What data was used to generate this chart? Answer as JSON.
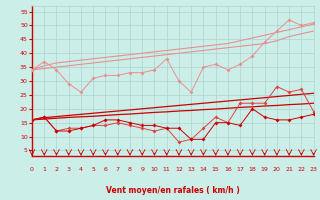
{
  "xlabel": "Vent moyen/en rafales ( km/h )",
  "background_color": "#cceee8",
  "grid_color": "#aad4ce",
  "x_ticks": [
    0,
    1,
    2,
    3,
    4,
    5,
    6,
    7,
    8,
    9,
    10,
    11,
    12,
    13,
    14,
    15,
    16,
    17,
    18,
    19,
    20,
    21,
    22,
    23
  ],
  "ylim": [
    3,
    57
  ],
  "xlim": [
    0,
    23
  ],
  "yticks": [
    5,
    10,
    15,
    20,
    25,
    30,
    35,
    40,
    45,
    50,
    55
  ],
  "line_upper_scatter": [
    34,
    37,
    34,
    29,
    26,
    31,
    32,
    32,
    33,
    33,
    34,
    38,
    30,
    26,
    35,
    36,
    34,
    36,
    39,
    44,
    48,
    52,
    50,
    51
  ],
  "line_upper_trend1": [
    34.0,
    35.5,
    36.5,
    37.0,
    37.5,
    38.0,
    38.5,
    39.0,
    39.5,
    40.0,
    40.5,
    41.0,
    41.5,
    42.0,
    42.5,
    43.0,
    43.5,
    44.5,
    45.5,
    46.5,
    47.5,
    48.5,
    49.5,
    50.5
  ],
  "line_upper_trend2": [
    34.0,
    34.5,
    35.0,
    35.5,
    36.0,
    36.5,
    37.0,
    37.5,
    38.0,
    38.5,
    39.0,
    39.5,
    40.0,
    40.5,
    41.0,
    41.5,
    42.0,
    42.5,
    43.0,
    43.5,
    44.5,
    46.0,
    47.0,
    48.0
  ],
  "line_mid_scatter": [
    16,
    17,
    12,
    13,
    13,
    14,
    14,
    15,
    14,
    13,
    12,
    13,
    8,
    9,
    13,
    17,
    15,
    22,
    22,
    22,
    28,
    26,
    27,
    19
  ],
  "line_mid_trend1": [
    16.0,
    16.8,
    17.2,
    17.6,
    18.0,
    18.4,
    18.8,
    19.2,
    19.6,
    20.0,
    20.4,
    20.8,
    21.2,
    21.6,
    22.0,
    22.4,
    22.8,
    23.2,
    23.6,
    24.0,
    24.4,
    24.8,
    25.2,
    25.6
  ],
  "line_mid_trend2": [
    16.0,
    16.3,
    16.6,
    16.9,
    17.1,
    17.3,
    17.6,
    17.9,
    18.1,
    18.4,
    18.7,
    18.9,
    19.2,
    19.4,
    19.7,
    19.9,
    20.2,
    20.5,
    20.7,
    21.0,
    21.2,
    21.5,
    21.7,
    22.0
  ],
  "line_low_scatter": [
    16,
    17,
    12,
    12,
    13,
    14,
    16,
    16,
    15,
    14,
    14,
    13,
    13,
    9,
    9,
    15,
    15,
    14,
    20,
    17,
    16,
    16,
    17,
    18
  ],
  "color_light": "#e89090",
  "color_medium": "#dd4444",
  "color_dark": "#cc0000",
  "xlabel_color": "#cc0000",
  "tick_color": "#cc0000"
}
